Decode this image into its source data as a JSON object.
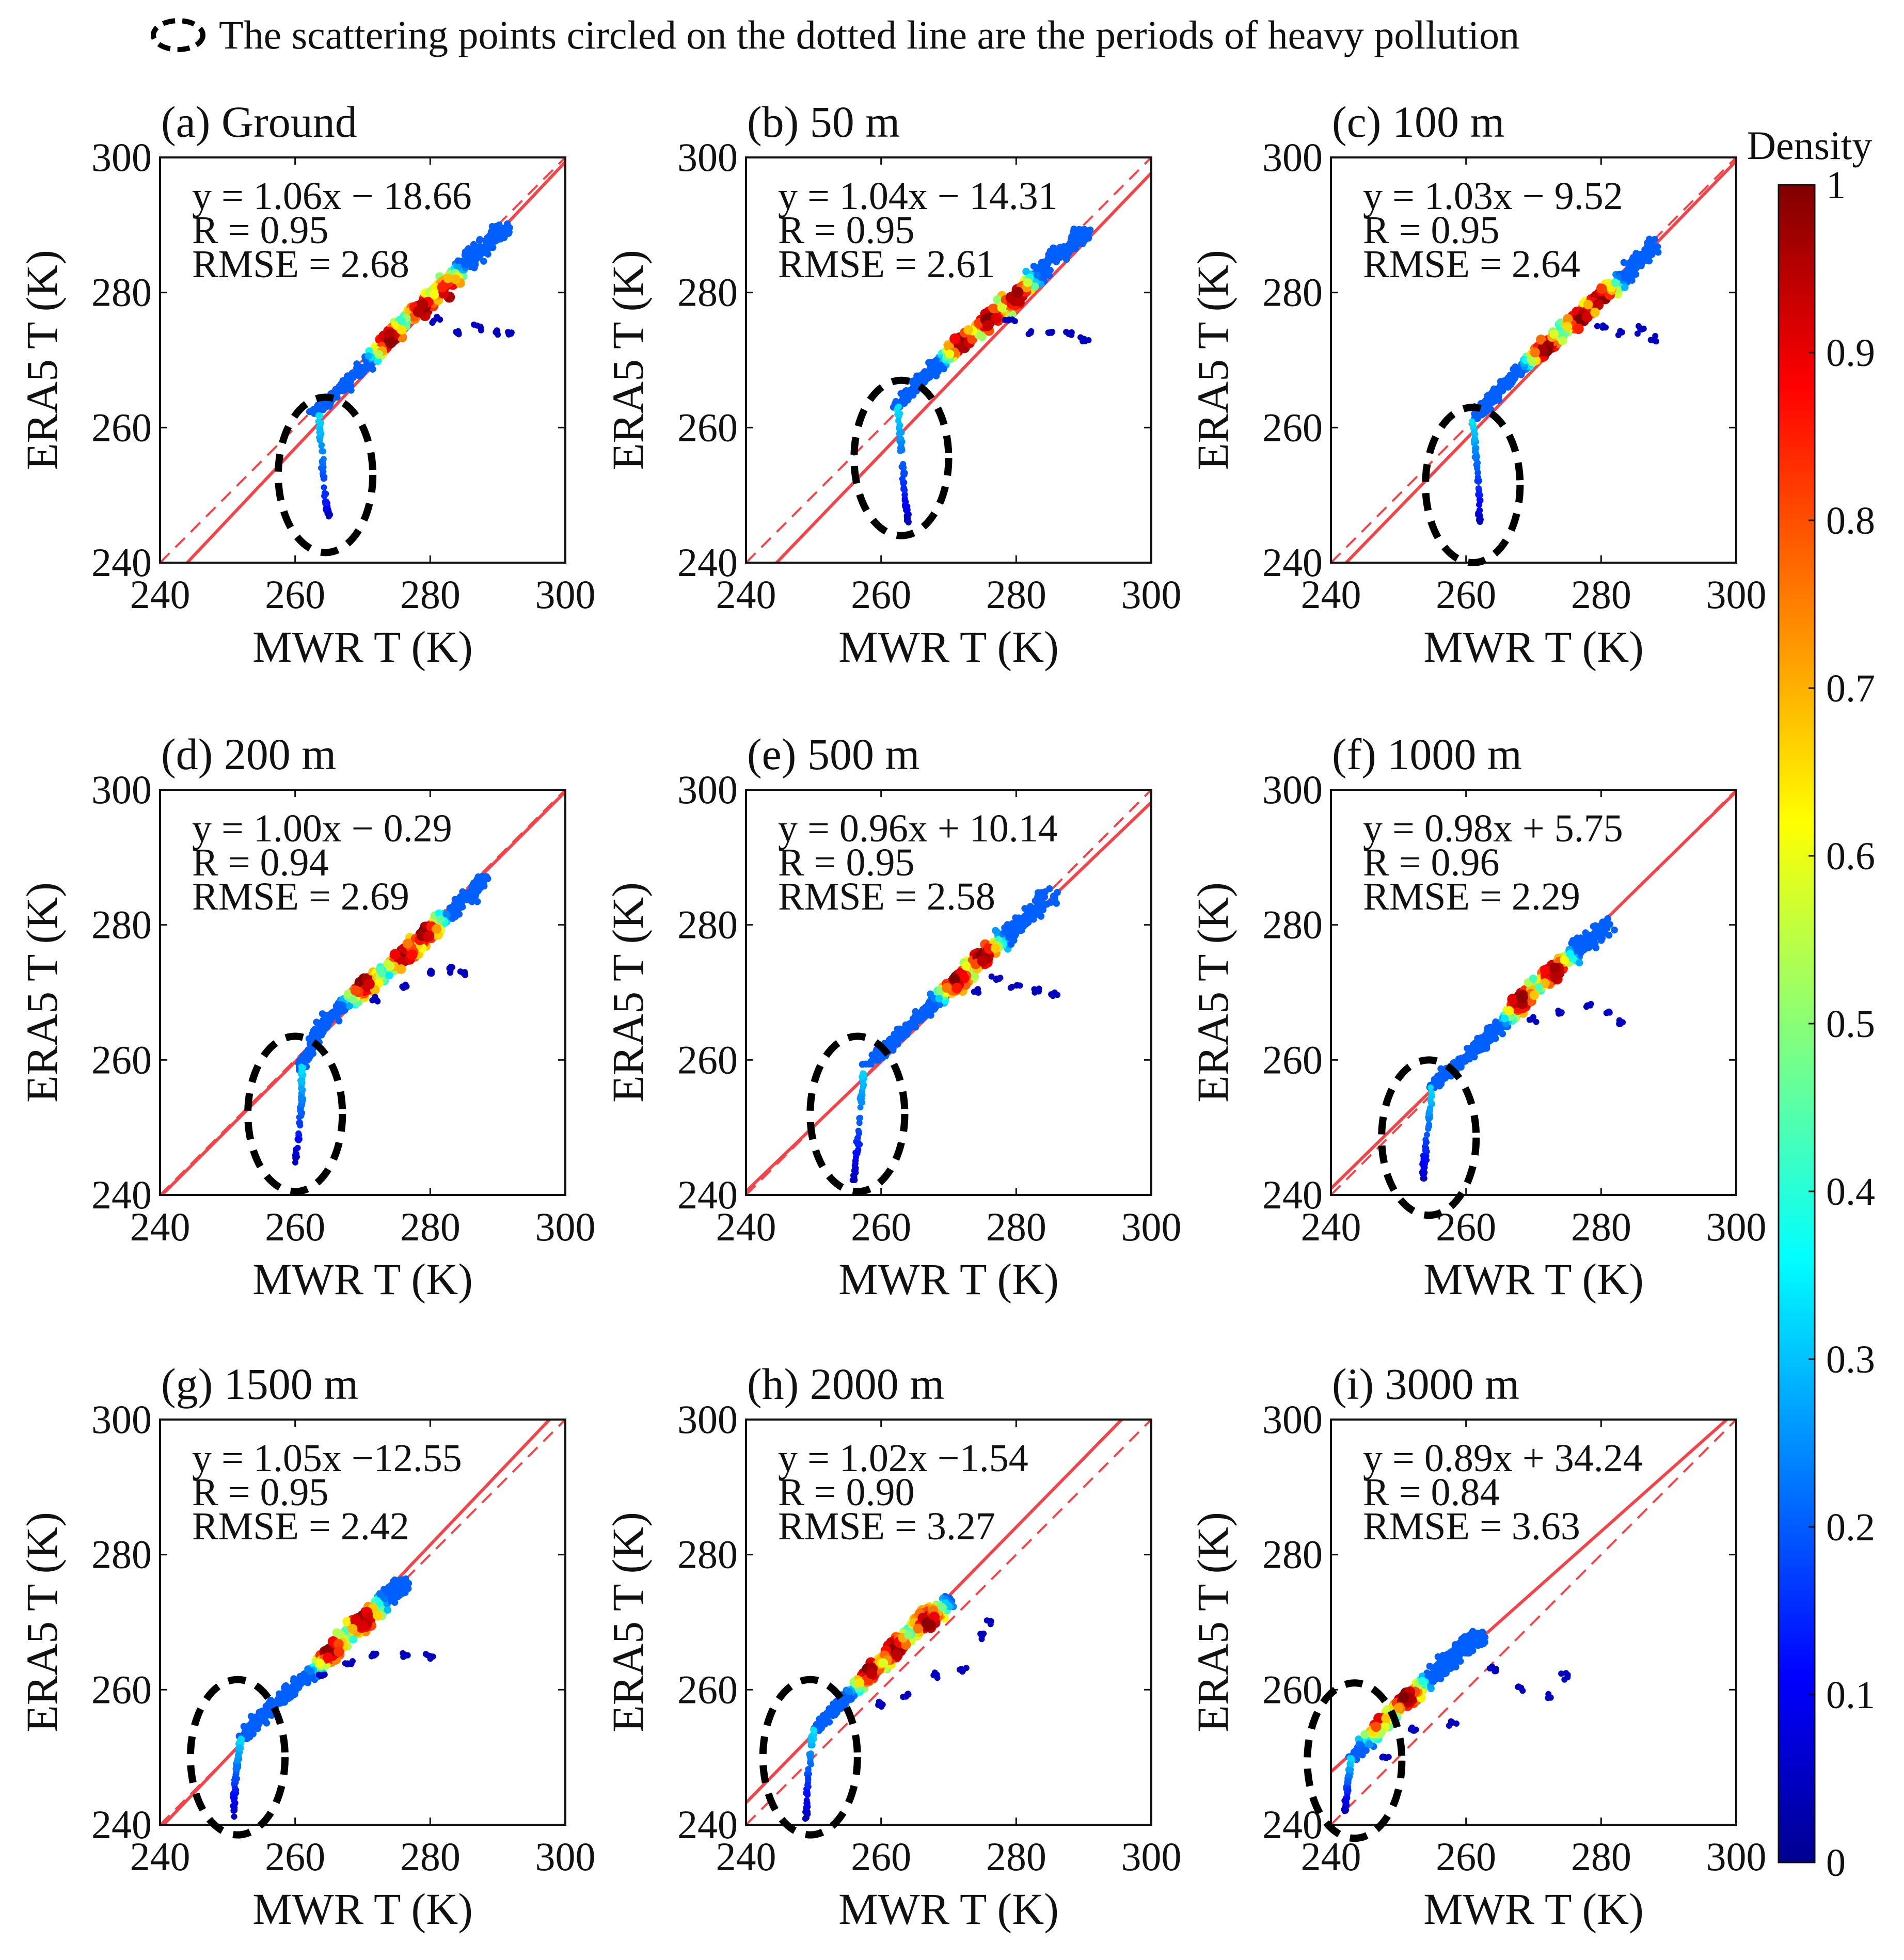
{
  "header": {
    "note": "The scattering points circled on the dotted line are the periods of heavy pollution"
  },
  "colors": {
    "fit_line": "#f2454a",
    "ellipse": "#000000",
    "axis": "#111111",
    "density_stops": [
      "#00008f",
      "#0000ff",
      "#0080ff",
      "#00ffff",
      "#80ff80",
      "#ffff00",
      "#ff8000",
      "#ff0000",
      "#800000"
    ]
  },
  "colorbar": {
    "label": "Density",
    "ticks": [
      "0",
      "0.1",
      "0.2",
      "0.3",
      "0.4",
      "0.5",
      "0.6",
      "0.7",
      "0.8",
      "0.9",
      "1"
    ]
  },
  "chart_data": [
    {
      "id": "a",
      "type": "scatter",
      "title": "(a) Ground",
      "xlabel": "MWR T (K)",
      "ylabel": "ERA5 T (K)",
      "xlim": [
        240,
        300
      ],
      "ylim": [
        240,
        300
      ],
      "xticks": [
        240,
        260,
        280,
        300
      ],
      "yticks": [
        240,
        260,
        280,
        300
      ],
      "stats": [
        "y = 1.06x − 18.66",
        "R = 0.95",
        "RMSE = 2.68"
      ],
      "fit": {
        "slope": 1.06,
        "intercept": -18.66
      },
      "reference": {
        "slope": 1,
        "intercept": 0
      },
      "ridge": [
        [
          263,
          262
        ],
        [
          267,
          266
        ],
        [
          272,
          271
        ],
        [
          276,
          275.5
        ],
        [
          281,
          280
        ],
        [
          286,
          285
        ],
        [
          291,
          289.5
        ]
      ],
      "tail": [
        [
          263.5,
          262
        ],
        [
          264,
          256
        ],
        [
          264.5,
          249
        ],
        [
          265,
          247
        ]
      ],
      "outliers": [
        [
          281,
          276
        ],
        [
          284,
          274
        ],
        [
          287,
          275
        ],
        [
          290,
          274
        ],
        [
          292,
          274
        ]
      ],
      "hot": [
        [
          274,
          273
        ],
        [
          279,
          277.5
        ],
        [
          283,
          280
        ]
      ],
      "ellipse": {
        "center": [
          264.5,
          253
        ],
        "radius": [
          7,
          11.5
        ]
      }
    },
    {
      "id": "b",
      "type": "scatter",
      "title": "(b) 50 m",
      "xlabel": "MWR T (K)",
      "ylabel": "ERA5 T (K)",
      "xlim": [
        240,
        300
      ],
      "ylim": [
        240,
        300
      ],
      "xticks": [
        240,
        260,
        280,
        300
      ],
      "yticks": [
        240,
        260,
        280,
        300
      ],
      "stats": [
        "y = 1.04x − 14.31",
        "R = 0.95",
        "RMSE = 2.61"
      ],
      "fit": {
        "slope": 1.04,
        "intercept": -14.31
      },
      "reference": {
        "slope": 1,
        "intercept": 0
      },
      "ridge": [
        [
          262,
          263
        ],
        [
          266,
          267
        ],
        [
          270,
          271
        ],
        [
          275,
          275
        ],
        [
          280,
          279.5
        ],
        [
          285,
          284.5
        ],
        [
          290,
          289
        ]
      ],
      "tail": [
        [
          262.5,
          263
        ],
        [
          263,
          257
        ],
        [
          263.5,
          250
        ],
        [
          264,
          246
        ]
      ],
      "outliers": [
        [
          279,
          276
        ],
        [
          282,
          274
        ],
        [
          285,
          274
        ],
        [
          288,
          274
        ],
        [
          290,
          273
        ]
      ],
      "hot": [
        [
          272,
          272.5
        ],
        [
          276,
          276
        ],
        [
          280,
          279.5
        ]
      ],
      "ellipse": {
        "center": [
          263,
          255.5
        ],
        "radius": [
          7,
          11.5
        ]
      }
    },
    {
      "id": "c",
      "type": "scatter",
      "title": "(c) 100 m",
      "xlabel": "MWR T (K)",
      "ylabel": "ERA5 T (K)",
      "xlim": [
        240,
        300
      ],
      "ylim": [
        240,
        300
      ],
      "xticks": [
        240,
        260,
        280,
        300
      ],
      "yticks": [
        240,
        260,
        280,
        300
      ],
      "stats": [
        "y = 1.03x − 9.52",
        "R = 0.95",
        "RMSE = 2.64"
      ],
      "fit": {
        "slope": 1.03,
        "intercept": -9.52
      },
      "reference": {
        "slope": 1,
        "intercept": 0
      },
      "ridge": [
        [
          261,
          261
        ],
        [
          265,
          265.5
        ],
        [
          269,
          269.5
        ],
        [
          273,
          273
        ],
        [
          278,
          277.5
        ],
        [
          283,
          282
        ],
        [
          288,
          287
        ]
      ],
      "tail": [
        [
          261,
          261
        ],
        [
          261.5,
          256
        ],
        [
          262,
          250
        ],
        [
          262,
          246
        ]
      ],
      "outliers": [
        [
          280,
          275
        ],
        [
          283,
          274
        ],
        [
          286,
          274.5
        ],
        [
          288,
          273
        ]
      ],
      "hot": [
        [
          272,
          271.5
        ],
        [
          277,
          276
        ],
        [
          280,
          279
        ]
      ],
      "ellipse": {
        "center": [
          261,
          251.5
        ],
        "radius": [
          7,
          11.5
        ]
      }
    },
    {
      "id": "d",
      "type": "scatter",
      "title": "(d) 200 m",
      "xlabel": "MWR T (K)",
      "ylabel": "ERA5 T (K)",
      "xlim": [
        240,
        300
      ],
      "ylim": [
        240,
        300
      ],
      "xticks": [
        240,
        260,
        280,
        300
      ],
      "yticks": [
        240,
        260,
        280,
        300
      ],
      "stats": [
        "y = 1.00x − 0.29",
        "R = 0.94",
        "RMSE = 2.69"
      ],
      "fit": {
        "slope": 1.0,
        "intercept": -0.29
      },
      "reference": {
        "slope": 1,
        "intercept": 0
      },
      "ridge": [
        [
          261,
          259
        ],
        [
          264,
          265
        ],
        [
          268,
          269
        ],
        [
          272,
          272
        ],
        [
          277,
          276
        ],
        [
          282,
          281
        ],
        [
          288,
          287
        ]
      ],
      "tail": [
        [
          261,
          259
        ],
        [
          261,
          254
        ],
        [
          260.5,
          249
        ],
        [
          260,
          245
        ]
      ],
      "outliers": [
        [
          272,
          269
        ],
        [
          276,
          271
        ],
        [
          280,
          273
        ],
        [
          283,
          273.5
        ],
        [
          285,
          273
        ]
      ],
      "hot": [
        [
          270,
          271.5
        ],
        [
          276,
          275.5
        ],
        [
          279,
          279
        ]
      ],
      "ellipse": {
        "center": [
          260,
          252
        ],
        "radius": [
          7,
          11.5
        ]
      }
    },
    {
      "id": "e",
      "type": "scatter",
      "title": "(e) 500 m",
      "xlabel": "MWR T (K)",
      "ylabel": "ERA5 T (K)",
      "xlim": [
        240,
        300
      ],
      "ylim": [
        240,
        300
      ],
      "xticks": [
        240,
        260,
        280,
        300
      ],
      "yticks": [
        240,
        260,
        280,
        300
      ],
      "stats": [
        "y = 0.96x + 10.14",
        "R = 0.95",
        "RMSE = 2.58"
      ],
      "fit": {
        "slope": 0.96,
        "intercept": 10.14
      },
      "reference": {
        "slope": 1,
        "intercept": 0
      },
      "ridge": [
        [
          258,
          259
        ],
        [
          262,
          263
        ],
        [
          266,
          266.5
        ],
        [
          270,
          270.5
        ],
        [
          275,
          275
        ],
        [
          280,
          279.5
        ],
        [
          285,
          284.5
        ]
      ],
      "tail": [
        [
          257.5,
          259
        ],
        [
          257,
          253
        ],
        [
          256.5,
          247
        ],
        [
          256,
          242
        ]
      ],
      "outliers": [
        [
          274,
          270
        ],
        [
          277,
          272
        ],
        [
          280,
          271
        ],
        [
          283,
          270.5
        ],
        [
          286,
          270
        ]
      ],
      "hot": [
        [
          271,
          272
        ],
        [
          275,
          275.5
        ]
      ],
      "ellipse": {
        "center": [
          256.5,
          252
        ],
        "radius": [
          7,
          11.5
        ]
      }
    },
    {
      "id": "f",
      "type": "scatter",
      "title": "(f) 1000 m",
      "xlabel": "MWR T (K)",
      "ylabel": "ERA5 T (K)",
      "xlim": [
        240,
        300
      ],
      "ylim": [
        240,
        300
      ],
      "xticks": [
        240,
        260,
        280,
        300
      ],
      "yticks": [
        240,
        260,
        280,
        300
      ],
      "stats": [
        "y = 0.98x + 5.75",
        "R = 0.96",
        "RMSE = 2.29"
      ],
      "fit": {
        "slope": 0.98,
        "intercept": 5.75
      },
      "reference": {
        "slope": 1,
        "intercept": 0
      },
      "ridge": [
        [
          255,
          256
        ],
        [
          259,
          259.5
        ],
        [
          263,
          263
        ],
        [
          267,
          267
        ],
        [
          271,
          271.5
        ],
        [
          276,
          276
        ],
        [
          281,
          280
        ]
      ],
      "tail": [
        [
          255,
          256
        ],
        [
          254.5,
          251
        ],
        [
          254,
          246
        ],
        [
          253.5,
          242
        ]
      ],
      "outliers": [
        [
          270,
          266
        ],
        [
          274,
          267
        ],
        [
          278,
          268
        ],
        [
          281,
          267
        ],
        [
          283,
          265.5
        ]
      ],
      "hot": [
        [
          268,
          269
        ],
        [
          273,
          273
        ]
      ],
      "ellipse": {
        "center": [
          254.5,
          248.5
        ],
        "radius": [
          7,
          11.5
        ]
      }
    },
    {
      "id": "g",
      "type": "scatter",
      "title": "(g) 1500 m",
      "xlabel": "MWR T (K)",
      "ylabel": "ERA5 T (K)",
      "xlim": [
        240,
        300
      ],
      "ylim": [
        240,
        300
      ],
      "xticks": [
        240,
        260,
        280,
        300
      ],
      "yticks": [
        240,
        260,
        280,
        300
      ],
      "stats": [
        "y = 1.05x −12.55",
        "R = 0.95",
        "RMSE = 2.42"
      ],
      "fit": {
        "slope": 1.05,
        "intercept": -12.55
      },
      "reference": {
        "slope": 1,
        "intercept": 0
      },
      "ridge": [
        [
          252,
          253
        ],
        [
          256,
          257
        ],
        [
          260,
          260.5
        ],
        [
          264,
          264
        ],
        [
          268,
          268.5
        ],
        [
          272,
          272
        ],
        [
          276,
          276
        ]
      ],
      "tail": [
        [
          252,
          253
        ],
        [
          251.5,
          249
        ],
        [
          251,
          245
        ],
        [
          251,
          241
        ]
      ],
      "outliers": [
        [
          264,
          262
        ],
        [
          268,
          264
        ],
        [
          272,
          265
        ],
        [
          276,
          265
        ],
        [
          280,
          265
        ]
      ],
      "hot": [
        [
          265,
          266
        ],
        [
          270,
          270.5
        ]
      ],
      "ellipse": {
        "center": [
          251.5,
          250
        ],
        "radius": [
          7,
          11.5
        ]
      }
    },
    {
      "id": "h",
      "type": "scatter",
      "title": "(h) 2000 m",
      "xlabel": "MWR T (K)",
      "ylabel": "ERA5 T (K)",
      "xlim": [
        240,
        300
      ],
      "ylim": [
        240,
        300
      ],
      "xticks": [
        240,
        260,
        280,
        300
      ],
      "yticks": [
        240,
        260,
        280,
        300
      ],
      "stats": [
        "y = 1.02x −1.54",
        "R = 0.90",
        "RMSE = 3.27"
      ],
      "fit": {
        "slope": 1.02,
        "intercept": -1.54
      },
      "reference": {
        "slope": 1,
        "intercept": 0
      },
      "ridge": [
        [
          250,
          254
        ],
        [
          254,
          258
        ],
        [
          258,
          262
        ],
        [
          262,
          266
        ],
        [
          266,
          270
        ],
        [
          270,
          273
        ]
      ],
      "tail": [
        [
          250,
          254
        ],
        [
          249.5,
          250
        ],
        [
          249,
          245
        ],
        [
          249,
          241
        ]
      ],
      "outliers": [
        [
          260,
          258
        ],
        [
          264,
          259
        ],
        [
          268,
          262
        ],
        [
          272,
          263
        ],
        [
          275,
          268
        ],
        [
          276,
          270
        ]
      ],
      "hot": [
        [
          258,
          263
        ],
        [
          262,
          266
        ],
        [
          267,
          270
        ]
      ],
      "ellipse": {
        "center": [
          249.5,
          250
        ],
        "radius": [
          7,
          11.5
        ]
      }
    },
    {
      "id": "i",
      "type": "scatter",
      "title": "(i) 3000 m",
      "xlabel": "MWR T (K)",
      "ylabel": "ERA5 T (K)",
      "xlim": [
        240,
        300
      ],
      "ylim": [
        240,
        300
      ],
      "xticks": [
        240,
        260,
        280,
        300
      ],
      "yticks": [
        240,
        260,
        280,
        300
      ],
      "stats": [
        "y = 0.89x + 34.24",
        "R = 0.84",
        "RMSE = 3.63"
      ],
      "fit": {
        "slope": 0.89,
        "intercept": 34.24
      },
      "reference": {
        "slope": 1,
        "intercept": 0
      },
      "ridge": [
        [
          243,
          250
        ],
        [
          247,
          254
        ],
        [
          251,
          258.5
        ],
        [
          255,
          262
        ],
        [
          259,
          266
        ],
        [
          262,
          268
        ]
      ],
      "tail": [
        [
          243,
          250
        ],
        [
          242.5,
          246
        ],
        [
          242,
          242
        ]
      ],
      "outliers": [
        [
          248,
          250
        ],
        [
          252,
          254
        ],
        [
          258,
          255
        ],
        [
          264,
          263
        ],
        [
          268,
          260
        ],
        [
          272,
          259
        ],
        [
          275,
          262
        ]
      ],
      "hot": [
        [
          246,
          256
        ],
        [
          251,
          259
        ]
      ],
      "ellipse": {
        "center": [
          243.5,
          249.5
        ],
        "radius": [
          7,
          11.5
        ]
      }
    }
  ]
}
